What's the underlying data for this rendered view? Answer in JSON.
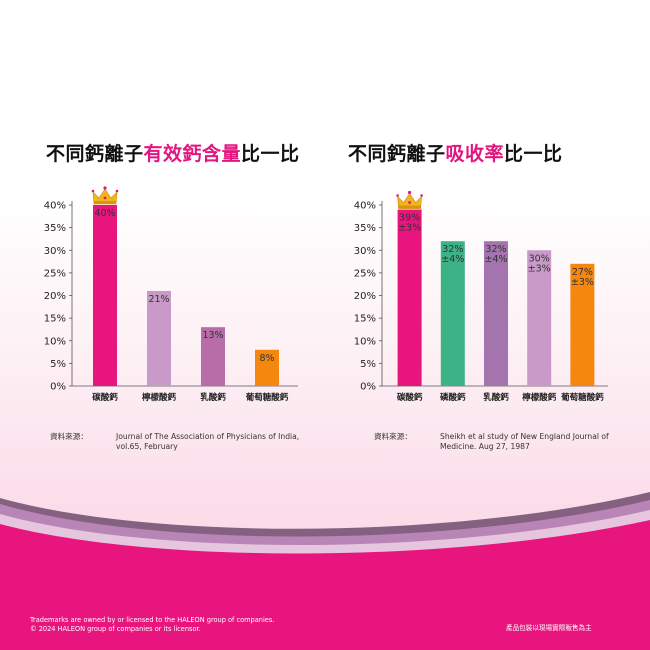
{
  "colors": {
    "accent": "#e3157f",
    "axis": "#555555",
    "band_pink": "#e8157f",
    "band_purple": "#b985b7"
  },
  "charts": [
    {
      "title_prefix": "不同鈣離子",
      "title_highlight": "有效鈣含量",
      "title_suffix": "比一比",
      "source_label": "資料來源：",
      "source_text": "Journal of The Association of Physicians of India, vol.65, February"
    },
    {
      "title_prefix": "不同鈣離子",
      "title_highlight": "吸收率",
      "title_suffix": "比一比",
      "source_label": "資料來源：",
      "source_text": "Sheikh et al study of New England Journal of Medicine. Aug 27, 1987"
    }
  ],
  "chart_data": [
    {
      "type": "bar",
      "title": "不同鈣離子有效鈣含量比一比",
      "categories": [
        "碳酸鈣",
        "檸檬酸鈣",
        "乳酸鈣",
        "葡萄糖酸鈣"
      ],
      "values": [
        40,
        21,
        13,
        8
      ],
      "labels": [
        "40%",
        "21%",
        "13%",
        "8%"
      ],
      "colors": [
        "#e8157f",
        "#c99ac7",
        "#b86da8",
        "#f5870f"
      ],
      "crown_on": "碳酸鈣",
      "yticks": [
        "0%",
        "5%",
        "10%",
        "15%",
        "20%",
        "25%",
        "30%",
        "35%",
        "40%"
      ],
      "ylim": [
        0,
        40
      ],
      "grid": false
    },
    {
      "type": "bar",
      "title": "不同鈣離子吸收率比一比",
      "categories": [
        "碳酸鈣",
        "磷酸鈣",
        "乳酸鈣",
        "檸檬酸鈣",
        "葡萄糖酸鈣"
      ],
      "values": [
        39,
        32,
        32,
        30,
        27
      ],
      "errors": [
        3,
        4,
        4,
        3,
        3
      ],
      "labels": [
        [
          "39%",
          "±3%"
        ],
        [
          "32%",
          "±4%"
        ],
        [
          "32%",
          "±4%"
        ],
        [
          "30%",
          "±3%"
        ],
        [
          "27%",
          "±3%"
        ]
      ],
      "colors": [
        "#e8157f",
        "#3bb386",
        "#a374ad",
        "#c99ac7",
        "#f5870f"
      ],
      "crown_on": "碳酸鈣",
      "yticks": [
        "0%",
        "5%",
        "10%",
        "15%",
        "20%",
        "25%",
        "30%",
        "35%",
        "40%"
      ],
      "ylim": [
        0,
        40
      ],
      "grid": false
    }
  ],
  "footer": {
    "line1": "Trademarks are owned by or licensed to the HALEON group of companies.",
    "line2": "© 2024 HALEON group of companies or its licensor.",
    "right": "產品包裝以現場實際販售為主"
  }
}
